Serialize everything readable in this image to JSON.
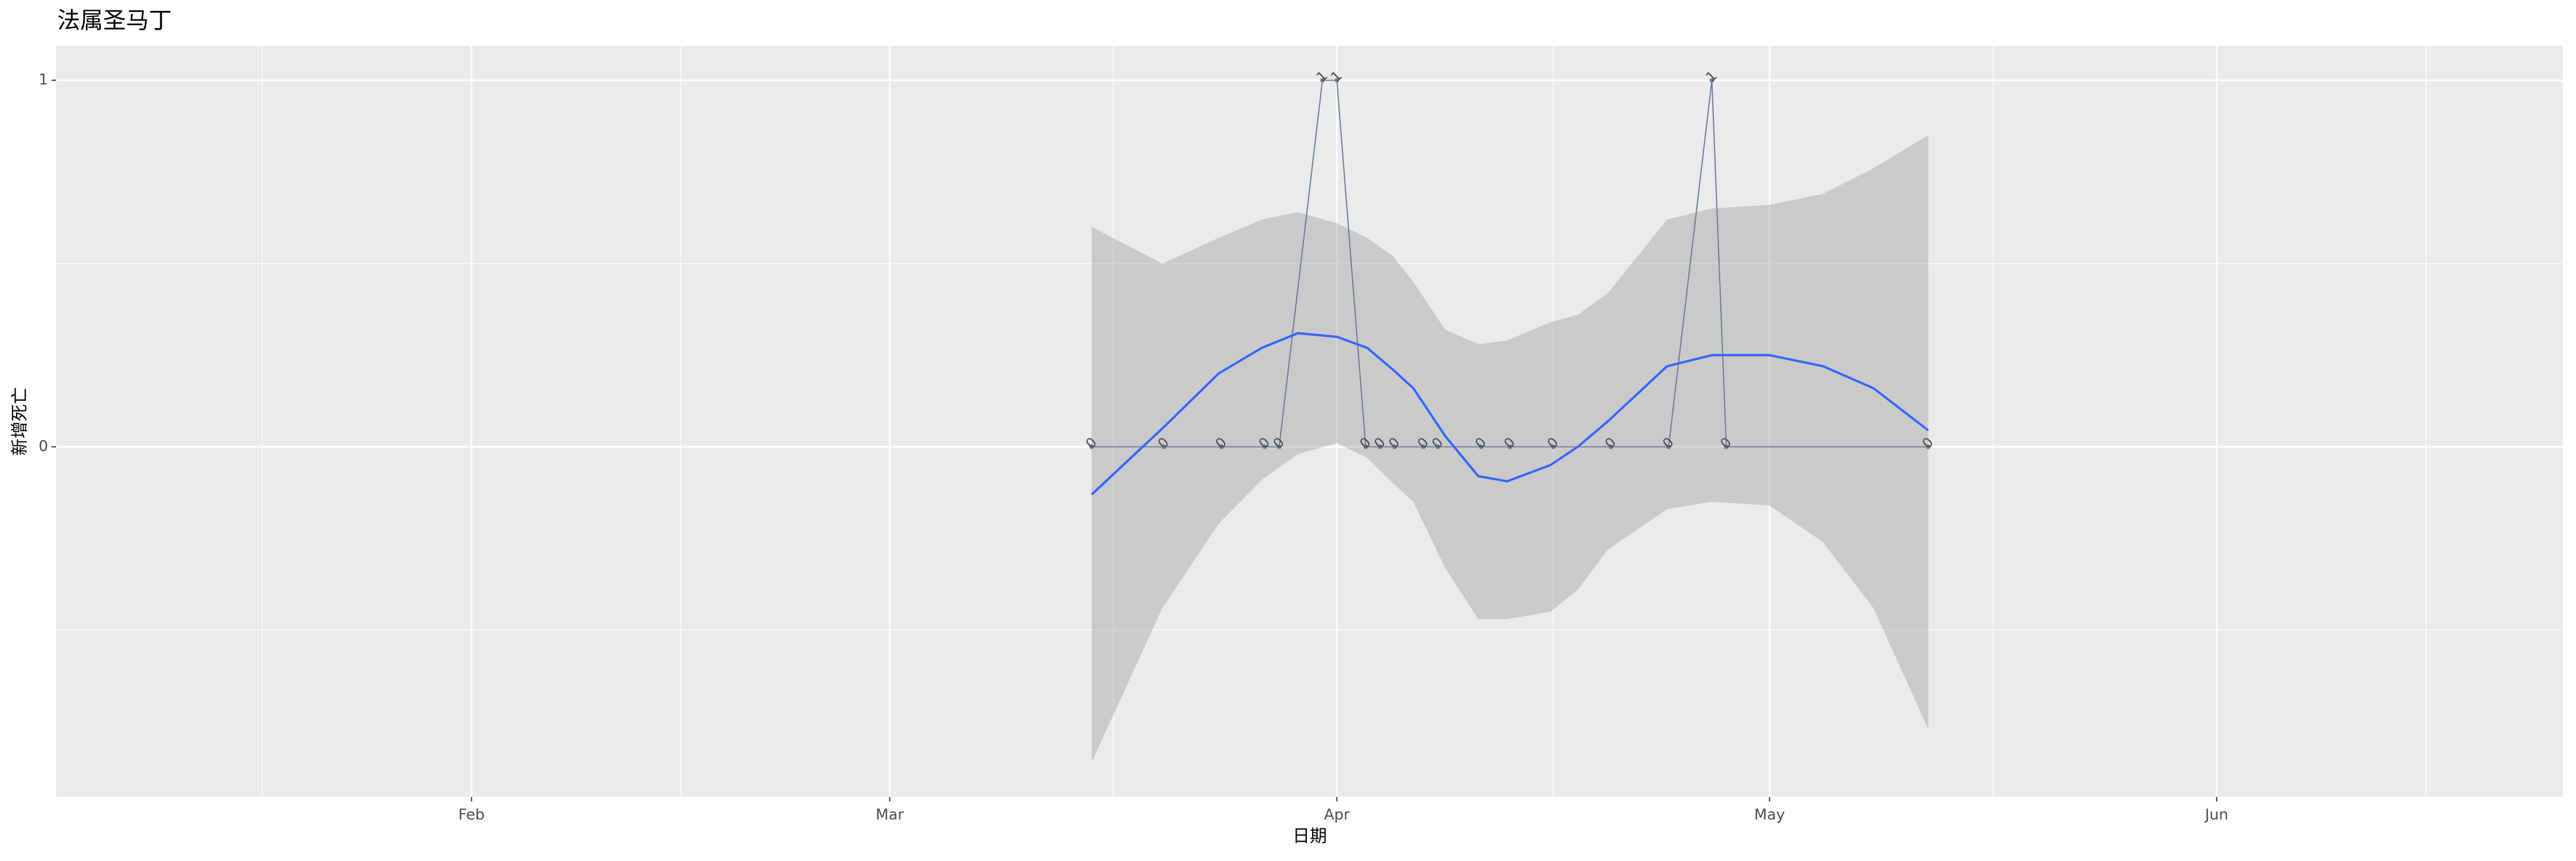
{
  "chart_data": {
    "type": "line",
    "title": "法属圣马丁",
    "x_label": "日期",
    "y_label": "新增死亡",
    "xlim": [
      3.2,
      177
    ],
    "xticks": [
      {
        "value": 32,
        "label": "Feb"
      },
      {
        "value": 61,
        "label": "Mar"
      },
      {
        "value": 92,
        "label": "Apr"
      },
      {
        "value": 122,
        "label": "May"
      },
      {
        "value": 153,
        "label": "Jun"
      }
    ],
    "xminorticks": [
      17.5,
      46.5,
      76.5,
      107,
      137.5,
      167.5
    ],
    "ylim": [
      -0.955,
      1.094
    ],
    "yticks": [
      0,
      1
    ],
    "yminorticks": [
      -0.5,
      0.5
    ],
    "grid": true,
    "x": [
      75,
      80,
      84,
      87,
      88,
      91,
      92,
      94,
      95,
      96,
      98,
      99,
      102,
      104,
      107,
      111,
      115,
      118,
      119,
      133
    ],
    "values": [
      0,
      0,
      0,
      0,
      0,
      1,
      1,
      0,
      0,
      0,
      0,
      0,
      0,
      0,
      0,
      0,
      0,
      1,
      0,
      0
    ],
    "color": "#6e7b9b",
    "smooth": {
      "x": [
        75,
        79.9,
        83.8,
        86.8,
        89.3,
        92,
        94.1,
        95.9,
        97.3,
        99.5,
        101.8,
        103.8,
        106.8,
        108.7,
        110.8,
        114.9,
        118,
        122,
        125.7,
        129.2,
        133
      ],
      "values": [
        -0.13,
        0.05,
        0.2,
        0.27,
        0.31,
        0.3,
        0.27,
        0.21,
        0.16,
        0.03,
        -0.08,
        -0.094,
        -0.05,
        0,
        0.07,
        0.22,
        0.25,
        0.25,
        0.22,
        0.16,
        0.045
      ],
      "upper": [
        0.6,
        0.5,
        0.57,
        0.62,
        0.64,
        0.61,
        0.57,
        0.52,
        0.45,
        0.32,
        0.28,
        0.29,
        0.34,
        0.36,
        0.42,
        0.62,
        0.65,
        0.66,
        0.69,
        0.76,
        0.85
      ],
      "lower": [
        -0.86,
        -0.44,
        -0.21,
        -0.09,
        -0.02,
        0.01,
        -0.03,
        -0.1,
        -0.15,
        -0.33,
        -0.47,
        -0.47,
        -0.45,
        -0.39,
        -0.28,
        -0.17,
        -0.15,
        -0.16,
        -0.26,
        -0.44,
        -0.77
      ],
      "color": "#3366ff",
      "band_color": "#999999"
    }
  }
}
